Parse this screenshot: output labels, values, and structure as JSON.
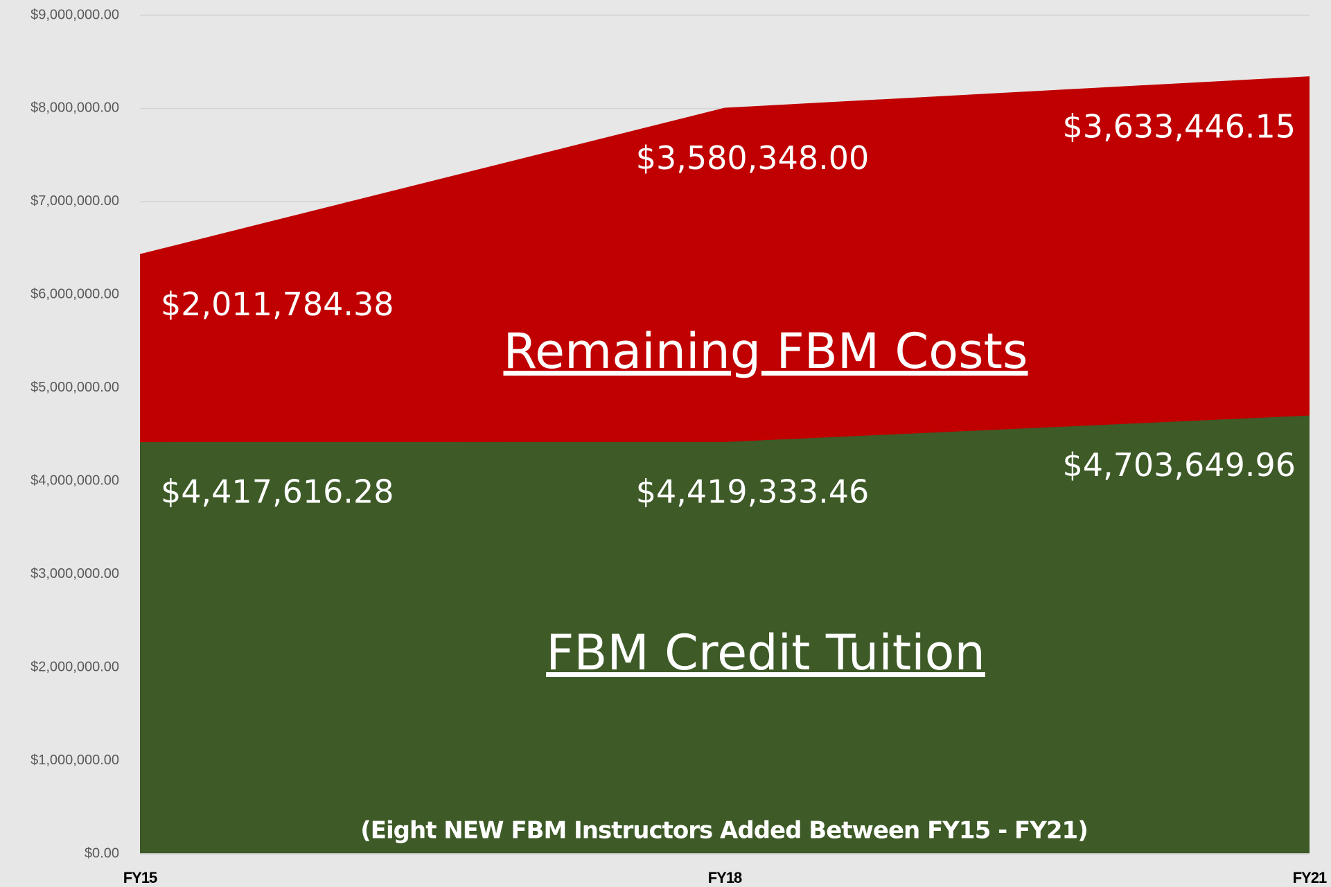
{
  "chart_data": {
    "type": "stacked_area",
    "categories": [
      "FY15",
      "FY18",
      "FY21"
    ],
    "series": [
      {
        "name": "FBM Credit Tuition",
        "color": "#3d5a27",
        "values": [
          4417616.28,
          4419333.46,
          4703649.96
        ],
        "value_labels": [
          "$4,417,616.28",
          "$4,419,333.46",
          "$4,703,649.96"
        ]
      },
      {
        "name": "Remaining FBM Costs",
        "color": "#c00000",
        "values": [
          2011784.38,
          3580348.0,
          3633446.15
        ],
        "value_labels": [
          "$2,011,784.38",
          "$3,580,348.00",
          "$3,633,446.15"
        ]
      }
    ],
    "annotation": "(Eight NEW FBM Instructors Added Between FY15 - FY21)",
    "ylim": [
      0,
      9000000
    ],
    "yticks": [
      {
        "value": 0,
        "label": "$0.00"
      },
      {
        "value": 1000000,
        "label": "$1,000,000.00"
      },
      {
        "value": 2000000,
        "label": "$2,000,000.00"
      },
      {
        "value": 3000000,
        "label": "$3,000,000.00"
      },
      {
        "value": 4000000,
        "label": "$4,000,000.00"
      },
      {
        "value": 5000000,
        "label": "$5,000,000.00"
      },
      {
        "value": 6000000,
        "label": "$6,000,000.00"
      },
      {
        "value": 7000000,
        "label": "$7,000,000.00"
      },
      {
        "value": 8000000,
        "label": "$8,000,000.00"
      },
      {
        "value": 9000000,
        "label": "$9,000,000.00"
      }
    ],
    "grid": true
  }
}
